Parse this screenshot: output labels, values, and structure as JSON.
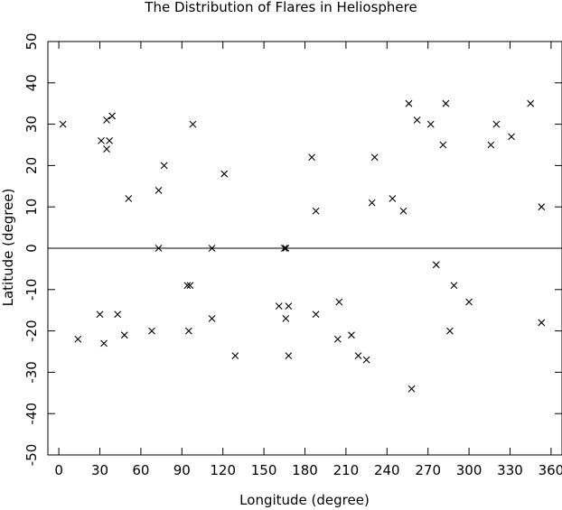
{
  "chart_data": {
    "type": "scatter",
    "title": "The Distribution of Flares in Heliosphere",
    "xlabel": "Longitude (degree)",
    "ylabel": "Latitude (degree)",
    "xlim": [
      -8,
      368
    ],
    "ylim": [
      -50,
      50
    ],
    "x_ticks": [
      0,
      30,
      60,
      90,
      120,
      150,
      180,
      210,
      240,
      270,
      300,
      330,
      360
    ],
    "y_ticks": [
      50,
      40,
      30,
      20,
      10,
      0,
      -10,
      -20,
      -30,
      -40,
      -50
    ],
    "zero_line": true,
    "grid": false,
    "marker": "x",
    "marker_color": "#000000",
    "series": [
      {
        "points": [
          [
            3,
            30
          ],
          [
            31,
            26
          ],
          [
            35,
            31
          ],
          [
            35,
            24
          ],
          [
            37,
            26
          ],
          [
            39,
            32
          ],
          [
            51,
            12
          ],
          [
            73,
            14
          ],
          [
            77,
            20
          ],
          [
            98,
            30
          ],
          [
            121,
            18
          ],
          [
            73,
            0
          ],
          [
            112,
            0
          ],
          [
            165,
            0
          ],
          [
            166,
            0
          ],
          [
            185,
            22
          ],
          [
            188,
            9
          ],
          [
            229,
            11
          ],
          [
            231,
            22
          ],
          [
            244,
            12
          ],
          [
            252,
            9
          ],
          [
            256,
            35
          ],
          [
            262,
            31
          ],
          [
            272,
            30
          ],
          [
            281,
            25
          ],
          [
            283,
            35
          ],
          [
            316,
            25
          ],
          [
            320,
            30
          ],
          [
            331,
            27
          ],
          [
            345,
            35
          ],
          [
            353,
            10
          ],
          [
            14,
            -22
          ],
          [
            30,
            -16
          ],
          [
            33,
            -23
          ],
          [
            43,
            -16
          ],
          [
            48,
            -21
          ],
          [
            68,
            -20
          ],
          [
            94,
            -9
          ],
          [
            96,
            -9
          ],
          [
            95,
            -20
          ],
          [
            112,
            -17
          ],
          [
            129,
            -26
          ],
          [
            161,
            -14
          ],
          [
            166,
            -17
          ],
          [
            168,
            -14
          ],
          [
            168,
            -26
          ],
          [
            188,
            -16
          ],
          [
            204,
            -22
          ],
          [
            205,
            -13
          ],
          [
            214,
            -21
          ],
          [
            219,
            -26
          ],
          [
            225,
            -27
          ],
          [
            258,
            -34
          ],
          [
            276,
            -4
          ],
          [
            286,
            -20
          ],
          [
            289,
            -9
          ],
          [
            300,
            -13
          ],
          [
            353,
            -18
          ]
        ]
      }
    ]
  }
}
